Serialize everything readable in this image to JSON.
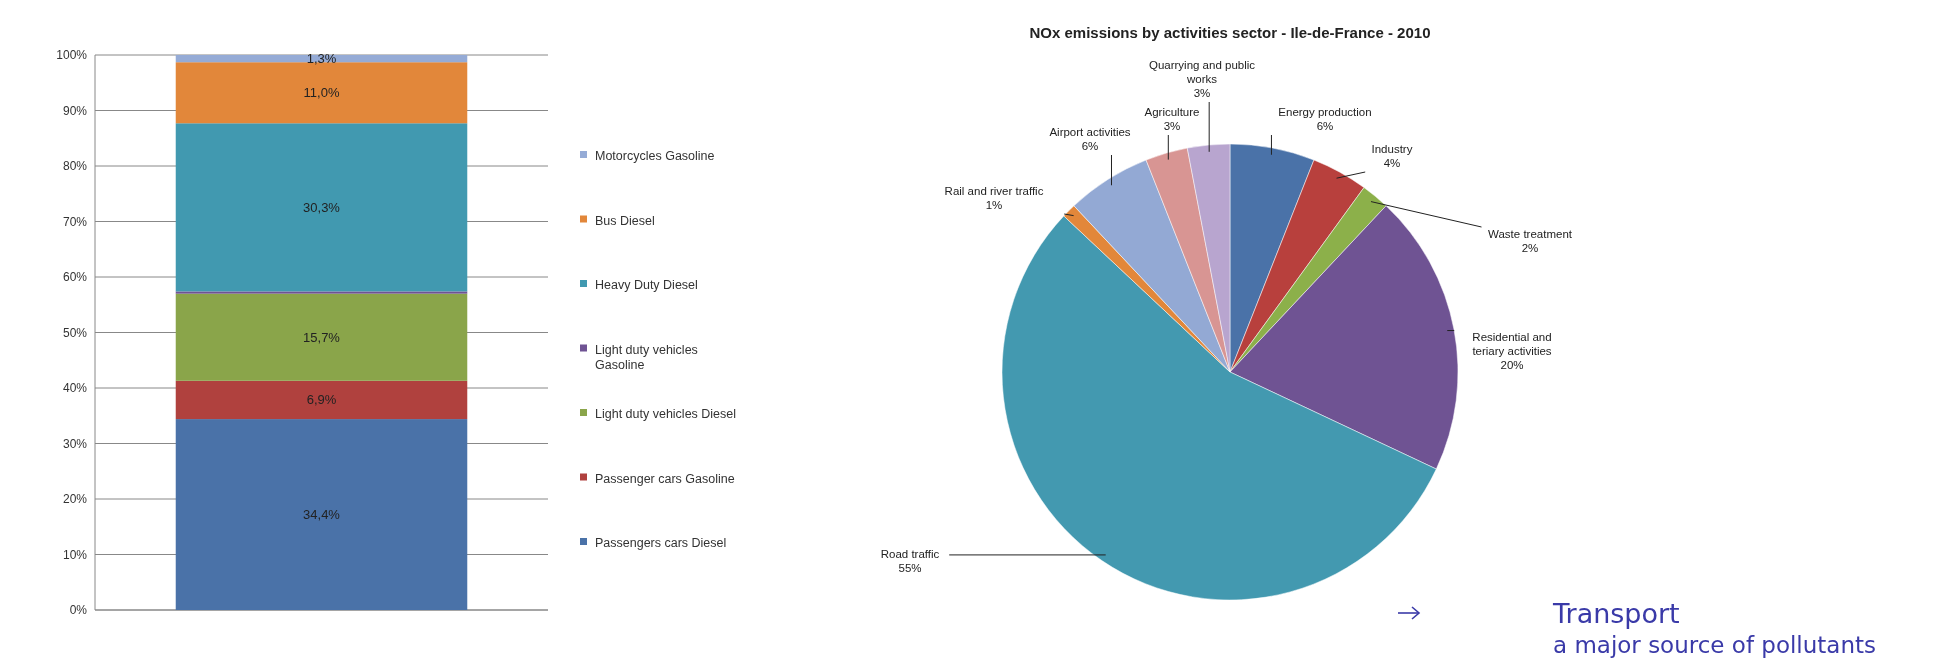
{
  "chart_data": [
    {
      "type": "bar",
      "stacked": true,
      "categories": [
        null
      ],
      "legend": "right",
      "grid": "y",
      "ylim": [
        0,
        100
      ],
      "yticks": [
        {
          "value": 0,
          "label": "0%"
        },
        {
          "value": 10,
          "label": "10%"
        },
        {
          "value": 20,
          "label": "20%"
        },
        {
          "value": 30,
          "label": "30%"
        },
        {
          "value": 40,
          "label": "40%"
        },
        {
          "value": 50,
          "label": "50%"
        },
        {
          "value": 60,
          "label": "60%"
        },
        {
          "value": 70,
          "label": "70%"
        },
        {
          "value": 80,
          "label": "80%"
        },
        {
          "value": 90,
          "label": "90%"
        },
        {
          "value": 100,
          "label": "100%"
        }
      ],
      "series": [
        {
          "name": "Passengers cars Diesel",
          "color": "#4a72a8",
          "values": [
            34.4
          ],
          "value_labels": [
            "34,4%"
          ]
        },
        {
          "name": "Passenger cars Gasoline",
          "color": "#b0413e",
          "values": [
            6.9
          ],
          "value_labels": [
            "6,9%"
          ]
        },
        {
          "name": "Light duty vehicles Diesel",
          "color": "#8aa54a",
          "values": [
            15.7
          ],
          "value_labels": [
            "15,7%"
          ]
        },
        {
          "name": "Light duty vehicles Gasoline",
          "color": "#6f5393",
          "values": [
            0.4
          ],
          "value_labels": [
            null
          ]
        },
        {
          "name": "Heavy Duty Diesel",
          "color": "#4199b0",
          "values": [
            30.3
          ],
          "value_labels": [
            "30,3%"
          ]
        },
        {
          "name": "Bus Diesel",
          "color": "#e2873a",
          "values": [
            11.0
          ],
          "value_labels": [
            "11,0%"
          ]
        },
        {
          "name": "Motorcycles Gasoline",
          "color": "#95abd6",
          "values": [
            1.3
          ],
          "value_labels": [
            "1,3%"
          ]
        }
      ]
    },
    {
      "type": "pie",
      "title": "NOx emissions by activities sector - Ile-de-France - 2010",
      "categories": [
        "Energy production",
        "Industry",
        "Waste treatment",
        "Residential and teriary activities",
        "Road traffic",
        "Rail and river traffic",
        "Airport activities",
        "Agriculture",
        "Quarrying and public works"
      ],
      "values": [
        6,
        4,
        2,
        20,
        55,
        1,
        6,
        3,
        3
      ],
      "value_labels": [
        "6%",
        "4%",
        "2%",
        "20%",
        "55%",
        "1%",
        "6%",
        "3%",
        "3%"
      ],
      "colors": [
        "#4a72a8",
        "#b8403d",
        "#8cb04a",
        "#6f5393",
        "#4399b0",
        "#e2873a",
        "#93a9d4",
        "#d89593",
        "#b8a5cf"
      ],
      "annotations": [
        "Transport",
        "a major source of pollutants"
      ]
    }
  ]
}
